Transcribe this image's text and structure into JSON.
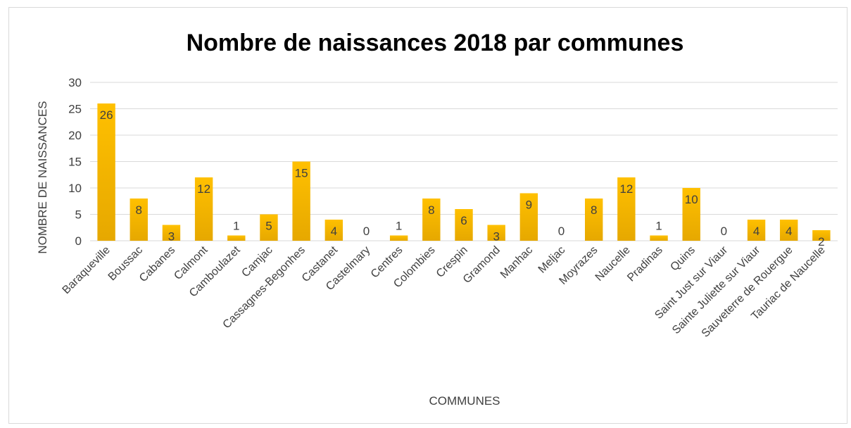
{
  "chart_data": {
    "type": "bar",
    "title": "Nombre de naissances 2018 par communes",
    "xlabel": "COMMUNES",
    "ylabel": "NOMBRE DE NAISSANCES",
    "ylim": [
      0,
      30
    ],
    "yticks": [
      0,
      5,
      10,
      15,
      20,
      25,
      30
    ],
    "grid": true,
    "legend": "none",
    "bar_color": "#FFC000",
    "bar_color_dark": "#E6A800",
    "categories": [
      "Baraqueville",
      "Boussac",
      "Cabanes",
      "Calmont",
      "Camboulazet",
      "Camjac",
      "Cassagnes-Begonhes",
      "Castanet",
      "Castelmary",
      "Centres",
      "Colombies",
      "Crespin",
      "Gramond",
      "Manhac",
      "Meljac",
      "Moyrazes",
      "Naucelle",
      "Pradinas",
      "Quins",
      "Saint Just sur Viaur",
      "Sainte Juliette sur Viaur",
      "Sauveterre de Rouergue",
      "Tauriac de Naucelle"
    ],
    "values": [
      26,
      8,
      3,
      12,
      1,
      5,
      15,
      4,
      0,
      1,
      8,
      6,
      3,
      9,
      0,
      8,
      12,
      1,
      10,
      0,
      4,
      4,
      2
    ]
  }
}
